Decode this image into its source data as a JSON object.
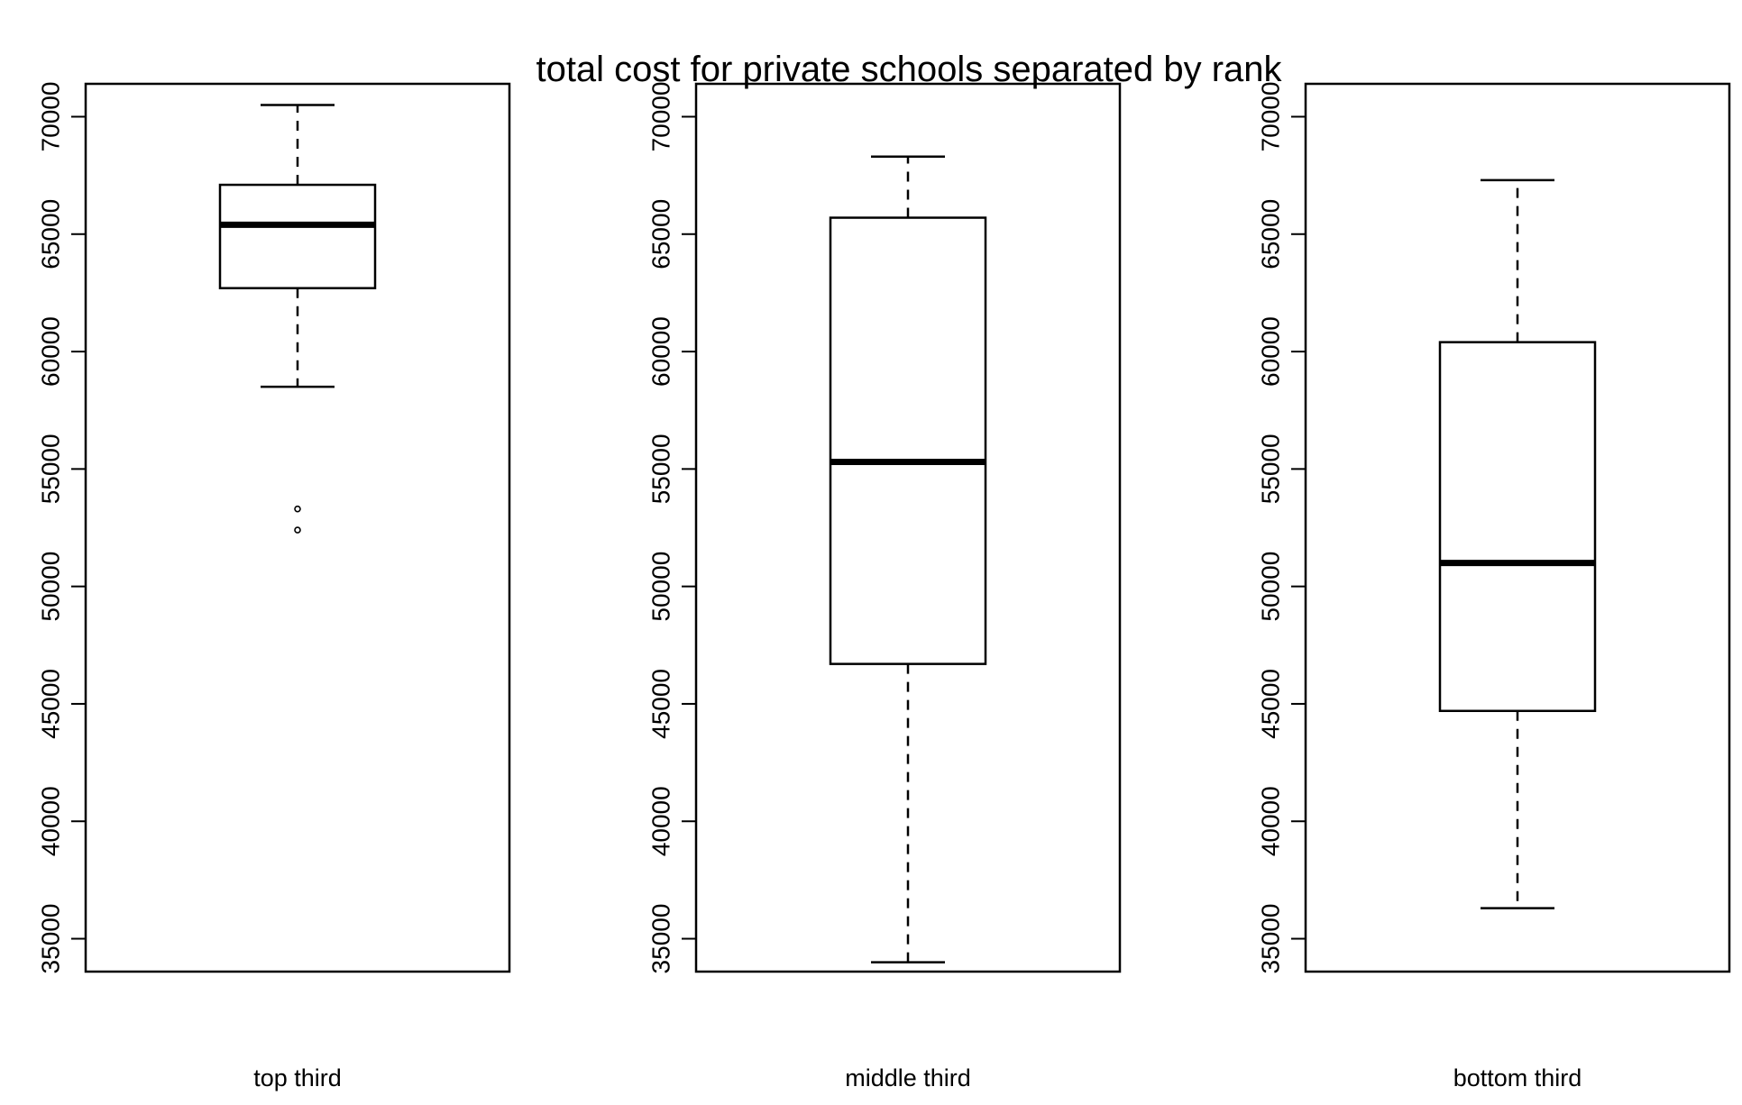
{
  "chart_data": {
    "type": "boxplot",
    "title": "total cost for private schools separated by rank",
    "xlabel": "",
    "ylabel": "",
    "ylim": [
      33600,
      71400
    ],
    "yticks": [
      "35000",
      "40000",
      "45000",
      "50000",
      "55000",
      "60000",
      "65000",
      "70000"
    ],
    "grid": false,
    "legend": "none",
    "panels": [
      {
        "category": "top third",
        "whisker_low": 58500,
        "q1": 62700,
        "median": 65400,
        "q3": 67100,
        "whisker_high": 70500,
        "outliers": [
          53300,
          52400
        ]
      },
      {
        "category": "middle third",
        "whisker_low": 34000,
        "q1": 46700,
        "median": 55300,
        "q3": 65700,
        "whisker_high": 68300,
        "outliers": []
      },
      {
        "category": "bottom third",
        "whisker_low": 36300,
        "q1": 44700,
        "median": 51000,
        "q3": 60400,
        "whisker_high": 67300,
        "outliers": []
      }
    ]
  },
  "colors": {
    "stroke": "#000000",
    "background": "#ffffff"
  }
}
